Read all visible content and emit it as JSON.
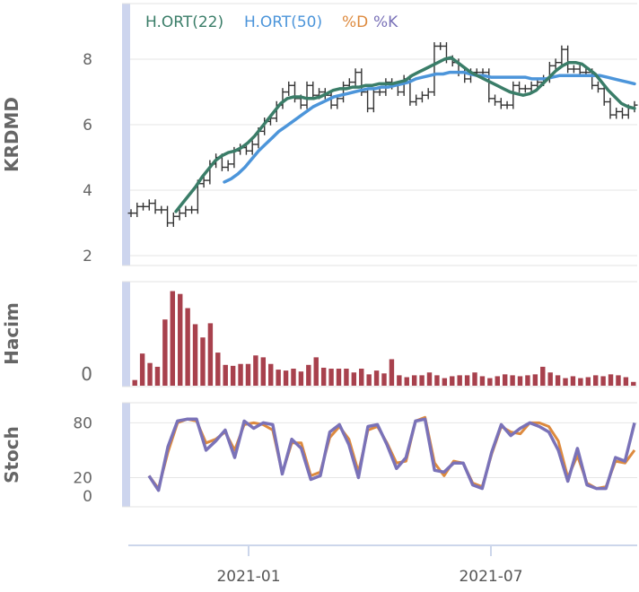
{
  "chart_data": {
    "type": "stock-panels",
    "x_ticks": [
      "2021-01",
      "2021-07"
    ],
    "legend": [
      {
        "label": "H.ORT(22)",
        "color": "#3a7d68"
      },
      {
        "label": "H.ORT(50)",
        "color": "#4c95da"
      },
      {
        "label": "%D",
        "color": "#dd8a3e"
      },
      {
        "label": "%K",
        "color": "#7a72b8"
      }
    ],
    "panels": {
      "price": {
        "ylabel": "KRDMD",
        "ylim": [
          1.7,
          9.7
        ],
        "yticks": [
          "8",
          "6",
          "4",
          "2"
        ],
        "close": [
          3.3,
          3.5,
          3.5,
          3.6,
          3.4,
          3.4,
          3.0,
          3.2,
          3.3,
          3.4,
          3.4,
          4.2,
          4.3,
          4.8,
          5.0,
          4.7,
          4.8,
          5.2,
          5.3,
          5.2,
          5.4,
          5.8,
          6.1,
          6.2,
          6.6,
          7.0,
          7.2,
          6.8,
          6.6,
          7.2,
          6.9,
          7.0,
          6.9,
          6.6,
          6.8,
          7.2,
          7.3,
          7.6,
          7.0,
          6.5,
          7.0,
          7.0,
          7.3,
          7.2,
          7.0,
          7.4,
          6.7,
          6.8,
          6.9,
          7.0,
          8.4,
          8.4,
          8.0,
          7.9,
          7.6,
          7.4,
          7.6,
          7.6,
          7.6,
          6.8,
          6.7,
          6.6,
          6.6,
          7.2,
          7.1,
          7.1,
          7.2,
          7.3,
          7.4,
          7.8,
          7.9,
          8.3,
          7.7,
          7.7,
          7.6,
          7.6,
          7.2,
          7.1,
          6.7,
          6.3,
          6.4,
          6.3,
          6.5,
          6.6
        ],
        "ma22": [
          null,
          null,
          null,
          null,
          null,
          null,
          null,
          null,
          null,
          null,
          3.35,
          3.6,
          3.85,
          4.1,
          4.4,
          4.65,
          4.9,
          5.05,
          5.15,
          5.2,
          5.3,
          5.45,
          5.65,
          5.9,
          6.15,
          6.4,
          6.65,
          6.8,
          6.85,
          6.85,
          6.8,
          6.8,
          6.85,
          6.95,
          7.05,
          7.1,
          7.1,
          7.15,
          7.15,
          7.2,
          7.2,
          7.25,
          7.25,
          7.25,
          7.3,
          7.35,
          7.5,
          7.6,
          7.7,
          7.8,
          7.9,
          8.0,
          8.05,
          7.9,
          7.75,
          7.6,
          7.5,
          7.4,
          7.3,
          7.2,
          7.1,
          7.0,
          6.95,
          6.9,
          6.95,
          7.05,
          7.25,
          7.45,
          7.65,
          7.8,
          7.9,
          7.9,
          7.85,
          7.7,
          7.55,
          7.3,
          7.05,
          6.85,
          6.65,
          6.55,
          6.5
        ],
        "ma50": [
          null,
          null,
          null,
          null,
          null,
          null,
          null,
          null,
          null,
          null,
          null,
          null,
          null,
          null,
          null,
          null,
          null,
          null,
          4.25,
          4.35,
          4.5,
          4.7,
          4.95,
          5.2,
          5.4,
          5.6,
          5.8,
          5.95,
          6.1,
          6.25,
          6.4,
          6.55,
          6.65,
          6.75,
          6.85,
          6.9,
          6.95,
          7.0,
          7.05,
          7.1,
          7.1,
          7.15,
          7.15,
          7.2,
          7.25,
          7.3,
          7.4,
          7.45,
          7.5,
          7.55,
          7.55,
          7.6,
          7.6,
          7.6,
          7.55,
          7.5,
          7.5,
          7.45,
          7.45,
          7.45,
          7.45,
          7.45,
          7.45,
          7.4,
          7.4,
          7.4,
          7.45,
          7.5,
          7.5,
          7.5,
          7.5,
          7.5,
          7.5,
          7.5,
          7.45,
          7.4,
          7.35,
          7.3,
          7.25
        ]
      },
      "volume": {
        "ylabel": "Hacim",
        "yticks": [
          "0"
        ],
        "ylim": [
          0,
          110
        ],
        "values": [
          6,
          34,
          24,
          20,
          70,
          100,
          97,
          82,
          65,
          51,
          66,
          35,
          22,
          21,
          23,
          23,
          32,
          30,
          23,
          17,
          16,
          18,
          15,
          22,
          30,
          19,
          18,
          18,
          18,
          14,
          18,
          12,
          16,
          13,
          28,
          11,
          9,
          11,
          11,
          14,
          11,
          8,
          10,
          11,
          11,
          14,
          10,
          8,
          10,
          12,
          11,
          10,
          11,
          12,
          20,
          14,
          11,
          8,
          10,
          8,
          9,
          11,
          10,
          12,
          11,
          9,
          4
        ]
      },
      "stoch": {
        "ylabel": "Stoch",
        "ylim": [
          -12,
          102
        ],
        "yticks": [
          "80",
          "20",
          "0"
        ],
        "d": [
          22,
          8,
          48,
          80,
          84,
          82,
          58,
          62,
          70,
          50,
          78,
          80,
          78,
          72,
          25,
          58,
          58,
          22,
          26,
          64,
          76,
          62,
          26,
          72,
          76,
          58,
          36,
          38,
          82,
          86,
          36,
          22,
          38,
          36,
          14,
          10,
          46,
          76,
          70,
          68,
          80,
          80,
          76,
          60,
          20,
          44,
          14,
          8,
          10,
          38,
          36,
          50
        ],
        "k": [
          22,
          6,
          54,
          82,
          84,
          84,
          50,
          60,
          72,
          42,
          82,
          74,
          80,
          78,
          24,
          62,
          52,
          18,
          22,
          70,
          78,
          56,
          20,
          76,
          78,
          56,
          30,
          42,
          82,
          84,
          28,
          26,
          36,
          36,
          12,
          8,
          48,
          78,
          66,
          74,
          80,
          76,
          70,
          50,
          16,
          52,
          12,
          8,
          8,
          42,
          38,
          80
        ]
      }
    }
  }
}
